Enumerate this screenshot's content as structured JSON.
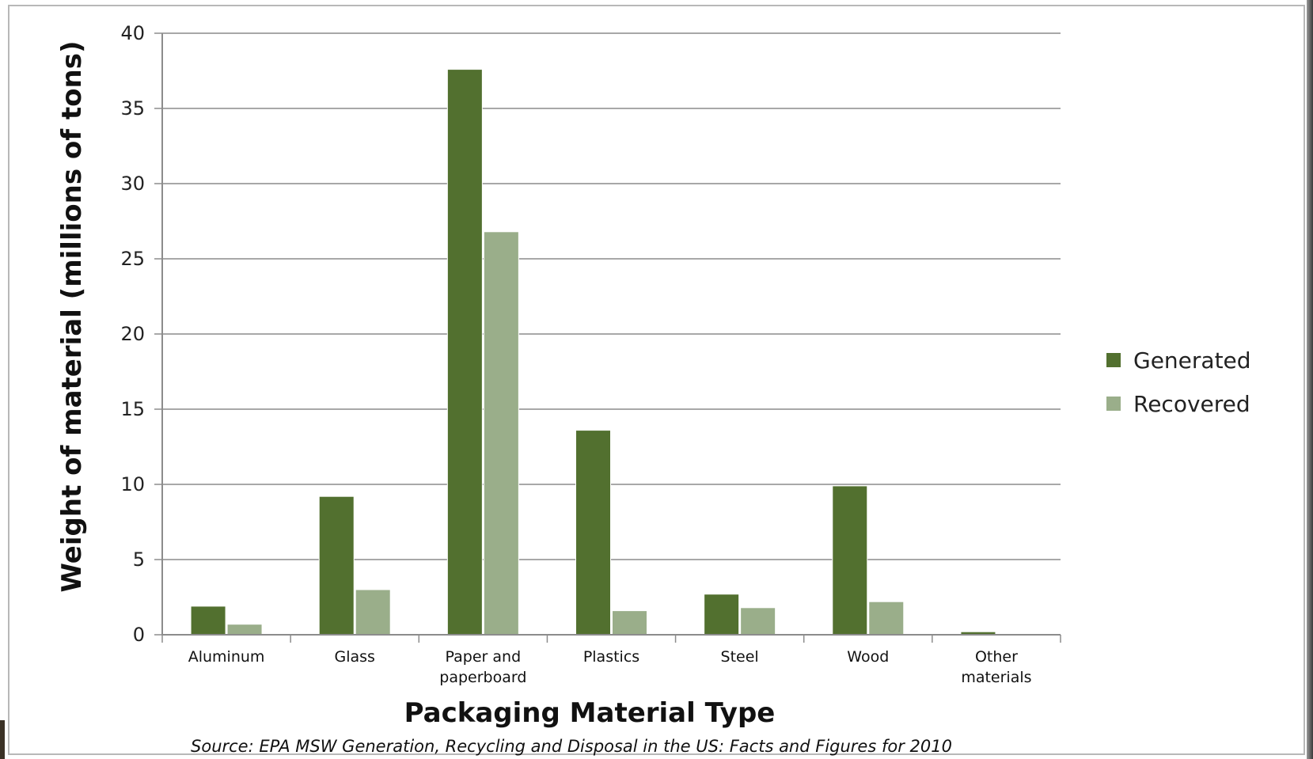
{
  "chart_data": {
    "type": "bar",
    "categories": [
      [
        "Aluminum"
      ],
      [
        "Glass"
      ],
      [
        "Paper and",
        "paperboard"
      ],
      [
        "Plastics"
      ],
      [
        "Steel"
      ],
      [
        "Wood"
      ],
      [
        "Other",
        "materials"
      ]
    ],
    "series": [
      {
        "name": "Generated",
        "color": "#52702f",
        "values": [
          1.9,
          9.2,
          37.6,
          13.6,
          2.7,
          9.9,
          0.2
        ]
      },
      {
        "name": "Recovered",
        "color": "#9aae8a",
        "values": [
          0.7,
          3.0,
          26.8,
          1.6,
          1.8,
          2.2,
          0.0
        ]
      }
    ],
    "title": "",
    "xlabel": "Packaging Material Type",
    "ylabel": "Weight of material (millions of tons)",
    "ylim": [
      0,
      40
    ],
    "yticks": [
      0,
      5,
      10,
      15,
      20,
      25,
      30,
      35,
      40
    ],
    "grid": true,
    "legend": "right",
    "source": "Source: EPA MSW Generation, Recycling and Disposal in the US: Facts and Figures for 2010"
  }
}
